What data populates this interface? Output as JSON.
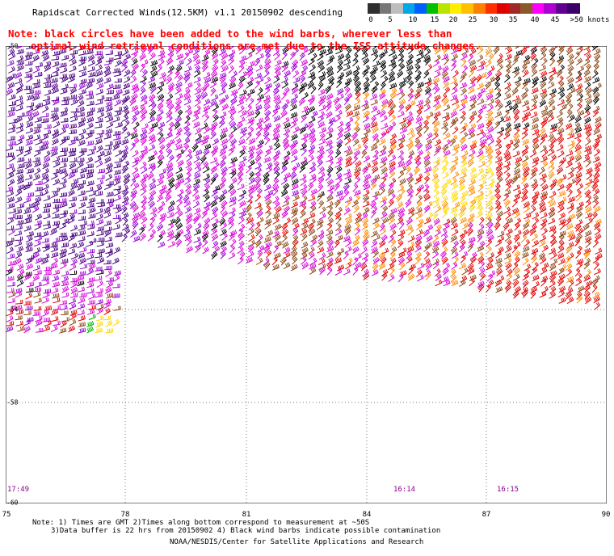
{
  "header": {
    "title": "Rapidscat Corrected Winds(12.5KM) v1.1 20150902 descending"
  },
  "legend": {
    "labels": [
      "0",
      "5",
      "10",
      "15",
      "20",
      "25",
      "30",
      "35",
      "40",
      "45",
      ">50 knots"
    ],
    "colors": [
      "#2f2f2f",
      "#777777",
      "#bdbdbd",
      "#00a8e8",
      "#0060ff",
      "#00c000",
      "#b8e400",
      "#ffee00",
      "#ffc000",
      "#ff8000",
      "#ff3000",
      "#e00000",
      "#a02828",
      "#8b5a2b",
      "#ff00ff",
      "#b000d0",
      "#600090",
      "#3a006a"
    ]
  },
  "notes": {
    "line1": "Note: black circles have been added to the wind barbs, wherever less than",
    "line2": "optimal wind retrieval conditions are met due to the ISS attitude changes."
  },
  "axes": {
    "x_ticks": [
      "75",
      "78",
      "81",
      "84",
      "87",
      "90"
    ],
    "y_ticks": [
      "-50",
      "-54",
      "-58",
      "-60"
    ]
  },
  "times": [
    "17:49",
    "16:14",
    "16:15"
  ],
  "footer": {
    "note_line1": "Note: 1) Times are GMT 2)Times along bottom correspond to measurement at ~50S",
    "note_line2": "3)Data buffer is 22 hrs from 20150902 4) Black wind barbs indicate possible contamination",
    "credit": "NOAA/NESDIS/Center for Satellite Applications and Research"
  },
  "map_data": {
    "lon_range": [
      75,
      90
    ],
    "lat_range": [
      -60,
      -50
    ],
    "wind_colors": {
      "strong": "#4b0080",
      "purple": "#9400d3",
      "magenta": "#d400d4",
      "brown": "#8b4513",
      "red": "#e00000",
      "orange": "#ff8c00",
      "yellow": "#ffd700",
      "green": "#00b000",
      "black": "#000000"
    }
  }
}
